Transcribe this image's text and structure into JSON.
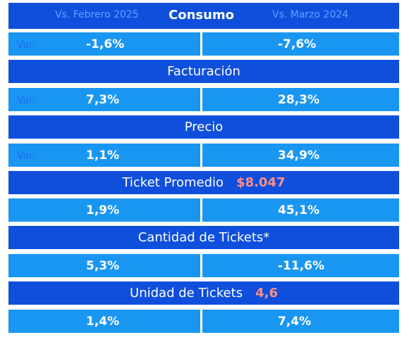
{
  "header": {
    "ref_left": "Vs. Febrero 2025",
    "title": "Consumo",
    "ref_right": "Vs. Marzo 2024"
  },
  "sections": [
    {
      "left_label": "Var.",
      "left": "-1,6%",
      "right": "-7,6%"
    },
    {
      "title": "Facturación",
      "left_label": "Var.",
      "left": "7,3%",
      "right": "28,3%"
    },
    {
      "title": "Precio",
      "left_label": "Var.",
      "left": "1,1%",
      "right": "34,9%"
    },
    {
      "title": "Ticket Promedio",
      "title_value": "$8.047",
      "left": "1,9%",
      "right": "45,1%"
    },
    {
      "title": "Cantidad de Tickets*",
      "left": "5,3%",
      "right": "-11,6%"
    },
    {
      "title": "Unidad de Tickets",
      "title_value": "4,6",
      "left": "1,4%",
      "right": "7,4%"
    }
  ],
  "colors": {
    "band": "#0f4fdc",
    "cell": "#1996f2",
    "reference_text": "#5ba4ff",
    "highlight_value": "#ff8e8a"
  }
}
